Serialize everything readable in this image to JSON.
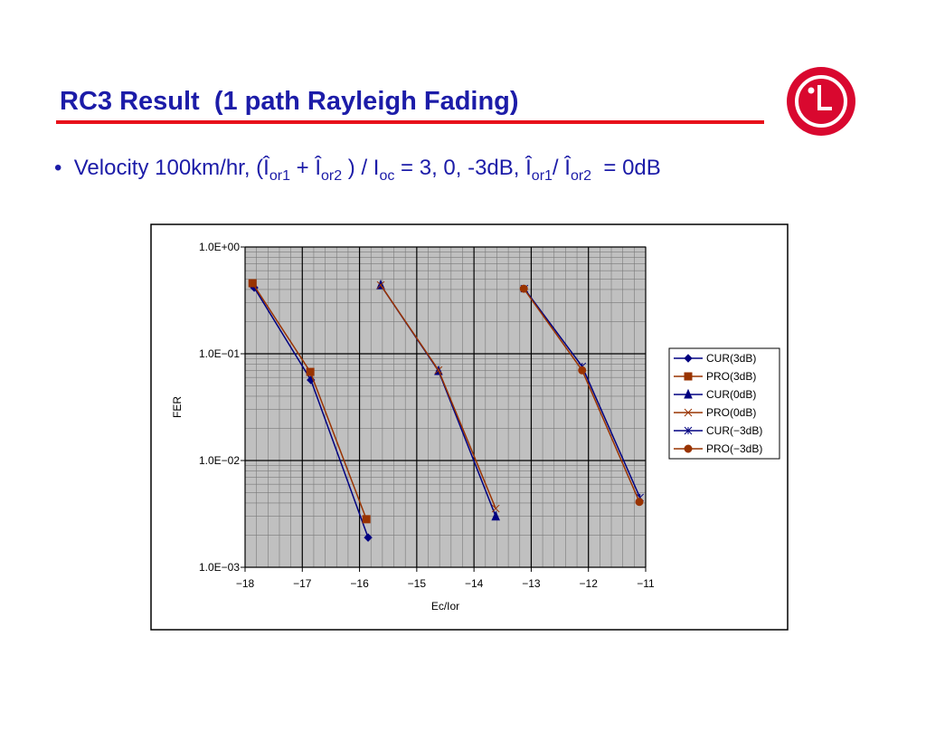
{
  "title": "RC3 Result  (1 path Rayleigh Fading)",
  "bullet": [
    "Velocity 100km/hr, (Î",
    "or1",
    " + Î",
    "or2",
    " ) / I",
    "oc",
    " = 3, 0, -3dB, Î",
    "or1",
    "/ Î",
    "or2",
    "  = 0dB"
  ],
  "chart_data": {
    "type": "line",
    "xlabel": "Ec/Ior",
    "ylabel": "FER",
    "xlim": [
      -18,
      -11
    ],
    "xticks": [
      {
        "value": -18,
        "label": "−18"
      },
      {
        "value": -17,
        "label": "−17"
      },
      {
        "value": -16,
        "label": "−16"
      },
      {
        "value": -15,
        "label": "−15"
      },
      {
        "value": -14,
        "label": "−14"
      },
      {
        "value": -13,
        "label": "−13"
      },
      {
        "value": -12,
        "label": "−12"
      },
      {
        "value": -11,
        "label": "−11"
      }
    ],
    "ylim": [
      0.001,
      1
    ],
    "log_y": true,
    "yticks": [
      {
        "value": 1,
        "label": "1.0E+00"
      },
      {
        "value": 0.1,
        "label": "1.0E−01"
      },
      {
        "value": 0.01,
        "label": "1.0E−02"
      },
      {
        "value": 0.001,
        "label": "1.0E−03"
      }
    ],
    "grid": true,
    "legend": "right",
    "series": [
      {
        "name": "CUR(3dB)",
        "color": "#000080",
        "marker": "diamond",
        "x": [
          -17.84,
          -16.85,
          -15.85
        ],
        "values": [
          0.416,
          0.0568,
          0.0019
        ]
      },
      {
        "name": "PRO(3dB)",
        "color": "#993300",
        "marker": "square",
        "x": [
          -17.87,
          -16.86,
          -15.88
        ],
        "values": [
          0.458,
          0.0676,
          0.00282
        ]
      },
      {
        "name": "CUR(0dB)",
        "color": "#000080",
        "marker": "triangle",
        "x": [
          -15.63,
          -14.62,
          -13.62
        ],
        "values": [
          0.44,
          0.069,
          0.003
        ]
      },
      {
        "name": "PRO(0dB)",
        "color": "#993300",
        "marker": "x",
        "x": [
          -15.63,
          -14.62,
          -13.62
        ],
        "values": [
          0.44,
          0.0703,
          0.00355
        ]
      },
      {
        "name": "CUR(−3dB)",
        "color": "#000080",
        "marker": "star",
        "x": [
          -13.12,
          -12.11,
          -11.1
        ],
        "values": [
          0.407,
          0.076,
          0.0045
        ]
      },
      {
        "name": "PRO(−3dB)",
        "color": "#993300",
        "marker": "circle",
        "x": [
          -13.13,
          -12.11,
          -11.11
        ],
        "values": [
          0.407,
          0.07,
          0.0041
        ]
      }
    ]
  }
}
